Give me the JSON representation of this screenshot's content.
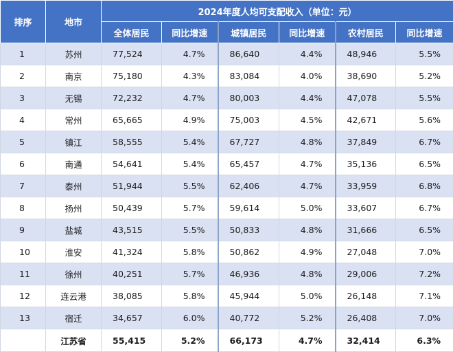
{
  "table": {
    "header": {
      "rank": "排序",
      "city": "地市",
      "group_title": "2024年度人均可支配收入（单位：元）",
      "columns": [
        "全体居民",
        "同比增速",
        "城镇居民",
        "同比增速",
        "农村居民",
        "同比增速"
      ]
    },
    "rows": [
      {
        "rank": "1",
        "city": "苏州",
        "all": "77,524",
        "all_g": "4.7%",
        "urban": "86,640",
        "urban_g": "4.4%",
        "rural": "48,946",
        "rural_g": "5.5%"
      },
      {
        "rank": "2",
        "city": "南京",
        "all": "75,180",
        "all_g": "4.3%",
        "urban": "83,084",
        "urban_g": "4.0%",
        "rural": "38,690",
        "rural_g": "5.2%"
      },
      {
        "rank": "3",
        "city": "无锡",
        "all": "72,232",
        "all_g": "4.7%",
        "urban": "80,003",
        "urban_g": "4.4%",
        "rural": "47,078",
        "rural_g": "5.5%"
      },
      {
        "rank": "4",
        "city": "常州",
        "all": "65,665",
        "all_g": "4.9%",
        "urban": "75,003",
        "urban_g": "4.5%",
        "rural": "42,671",
        "rural_g": "5.6%"
      },
      {
        "rank": "5",
        "city": "镇江",
        "all": "58,555",
        "all_g": "5.4%",
        "urban": "67,727",
        "urban_g": "4.8%",
        "rural": "37,849",
        "rural_g": "6.7%"
      },
      {
        "rank": "6",
        "city": "南通",
        "all": "54,641",
        "all_g": "5.4%",
        "urban": "65,457",
        "urban_g": "4.7%",
        "rural": "35,136",
        "rural_g": "6.5%"
      },
      {
        "rank": "7",
        "city": "泰州",
        "all": "51,944",
        "all_g": "5.5%",
        "urban": "62,406",
        "urban_g": "4.7%",
        "rural": "33,959",
        "rural_g": "6.8%"
      },
      {
        "rank": "8",
        "city": "扬州",
        "all": "50,439",
        "all_g": "5.7%",
        "urban": "59,614",
        "urban_g": "5.0%",
        "rural": "33,607",
        "rural_g": "6.7%"
      },
      {
        "rank": "9",
        "city": "盐城",
        "all": "43,515",
        "all_g": "5.5%",
        "urban": "50,833",
        "urban_g": "4.8%",
        "rural": "31,666",
        "rural_g": "6.5%"
      },
      {
        "rank": "10",
        "city": "淮安",
        "all": "41,324",
        "all_g": "5.8%",
        "urban": "50,862",
        "urban_g": "4.9%",
        "rural": "27,048",
        "rural_g": "7.0%"
      },
      {
        "rank": "11",
        "city": "徐州",
        "all": "40,251",
        "all_g": "5.7%",
        "urban": "46,936",
        "urban_g": "4.8%",
        "rural": "29,006",
        "rural_g": "7.2%"
      },
      {
        "rank": "12",
        "city": "连云港",
        "all": "38,085",
        "all_g": "5.8%",
        "urban": "45,944",
        "urban_g": "5.0%",
        "rural": "26,148",
        "rural_g": "7.1%"
      },
      {
        "rank": "13",
        "city": "宿迁",
        "all": "34,657",
        "all_g": "6.0%",
        "urban": "40,772",
        "urban_g": "5.2%",
        "rural": "26,408",
        "rural_g": "7.0%"
      }
    ],
    "total": {
      "rank": "",
      "city": "江苏省",
      "all": "55,415",
      "all_g": "5.2%",
      "urban": "66,173",
      "urban_g": "4.7%",
      "rural": "32,414",
      "rural_g": "6.3%"
    }
  },
  "colors": {
    "header_bg": "#4472c4",
    "alt_row_bg": "#dae1f2"
  }
}
